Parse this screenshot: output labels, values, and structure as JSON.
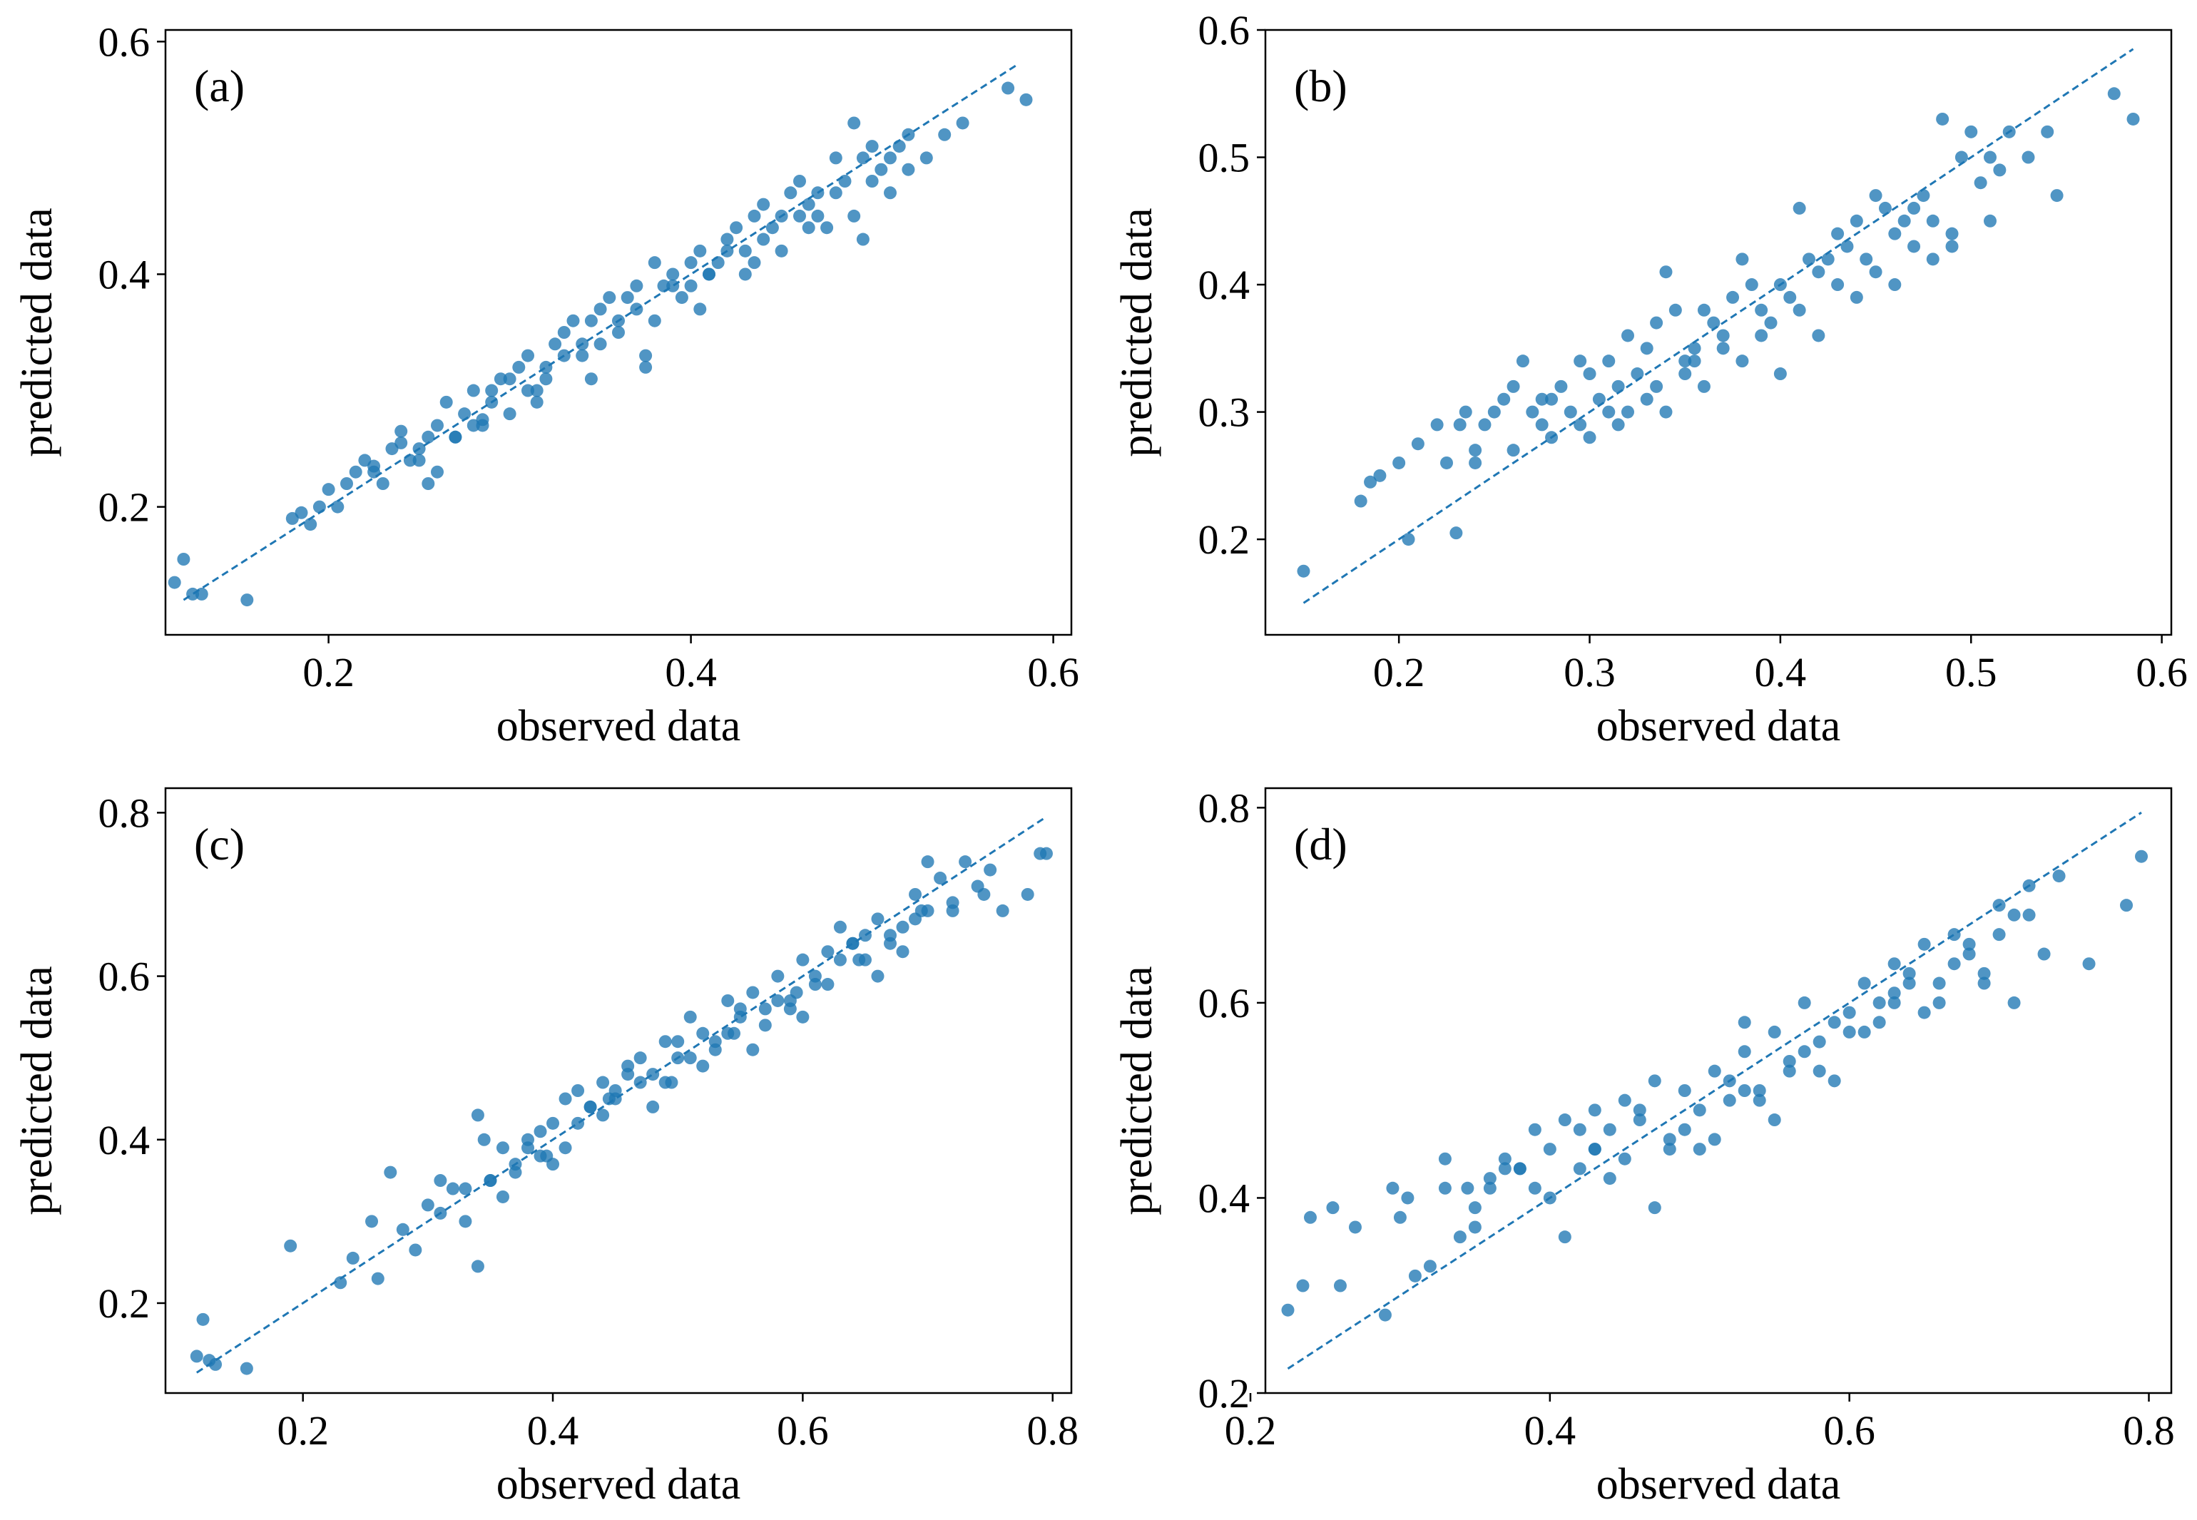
{
  "colors": {
    "points": "#1f77b4",
    "reference_line": "#1f77b4",
    "axes": "#000000"
  },
  "chart_data": [
    {
      "panel": "(a)",
      "type": "scatter",
      "xlabel": "observed data",
      "ylabel": "predicted data",
      "xlim": [
        0.11,
        0.61
      ],
      "ylim": [
        0.09,
        0.61
      ],
      "xticks": [
        0.2,
        0.4,
        0.6
      ],
      "yticks": [
        0.2,
        0.4,
        0.6
      ],
      "reference_line": [
        [
          0.12,
          0.12
        ],
        [
          0.58,
          0.58
        ]
      ],
      "x": [
        0.115,
        0.12,
        0.125,
        0.13,
        0.155,
        0.18,
        0.185,
        0.19,
        0.195,
        0.2,
        0.205,
        0.21,
        0.215,
        0.22,
        0.225,
        0.23,
        0.235,
        0.24,
        0.245,
        0.25,
        0.255,
        0.26,
        0.265,
        0.27,
        0.275,
        0.28,
        0.285,
        0.29,
        0.295,
        0.3,
        0.305,
        0.31,
        0.315,
        0.32,
        0.325,
        0.33,
        0.335,
        0.34,
        0.345,
        0.35,
        0.355,
        0.36,
        0.365,
        0.37,
        0.375,
        0.38,
        0.385,
        0.39,
        0.395,
        0.4,
        0.405,
        0.41,
        0.415,
        0.42,
        0.425,
        0.43,
        0.435,
        0.44,
        0.445,
        0.45,
        0.455,
        0.46,
        0.465,
        0.47,
        0.475,
        0.48,
        0.485,
        0.49,
        0.495,
        0.5,
        0.505,
        0.51,
        0.515,
        0.52,
        0.53,
        0.54,
        0.55,
        0.575,
        0.585,
        0.24,
        0.25,
        0.26,
        0.27,
        0.28,
        0.29,
        0.3,
        0.31,
        0.32,
        0.33,
        0.34,
        0.35,
        0.36,
        0.37,
        0.38,
        0.39,
        0.4,
        0.41,
        0.42,
        0.43,
        0.44,
        0.45,
        0.46,
        0.47,
        0.48,
        0.49,
        0.5,
        0.51,
        0.52,
        0.345,
        0.375,
        0.405,
        0.435,
        0.465,
        0.495,
        0.285,
        0.315,
        0.255,
        0.225
      ],
      "y": [
        0.135,
        0.155,
        0.125,
        0.125,
        0.12,
        0.19,
        0.195,
        0.185,
        0.2,
        0.215,
        0.2,
        0.22,
        0.23,
        0.24,
        0.235,
        0.22,
        0.25,
        0.265,
        0.24,
        0.25,
        0.26,
        0.27,
        0.29,
        0.26,
        0.28,
        0.3,
        0.275,
        0.3,
        0.31,
        0.31,
        0.32,
        0.33,
        0.29,
        0.32,
        0.34,
        0.35,
        0.36,
        0.33,
        0.36,
        0.37,
        0.38,
        0.35,
        0.38,
        0.39,
        0.32,
        0.41,
        0.39,
        0.4,
        0.38,
        0.41,
        0.42,
        0.4,
        0.41,
        0.43,
        0.44,
        0.42,
        0.45,
        0.46,
        0.44,
        0.45,
        0.47,
        0.48,
        0.46,
        0.47,
        0.44,
        0.5,
        0.48,
        0.53,
        0.5,
        0.51,
        0.49,
        0.5,
        0.51,
        0.52,
        0.5,
        0.52,
        0.53,
        0.56,
        0.55,
        0.255,
        0.24,
        0.23,
        0.26,
        0.27,
        0.29,
        0.28,
        0.3,
        0.31,
        0.33,
        0.34,
        0.34,
        0.36,
        0.37,
        0.36,
        0.39,
        0.39,
        0.4,
        0.42,
        0.4,
        0.43,
        0.42,
        0.45,
        0.45,
        0.47,
        0.45,
        0.48,
        0.47,
        0.49,
        0.31,
        0.33,
        0.37,
        0.41,
        0.44,
        0.43,
        0.27,
        0.3,
        0.22,
        0.23
      ]
    },
    {
      "panel": "(b)",
      "type": "scatter",
      "xlabel": "observed data",
      "ylabel": "predicted data",
      "xlim": [
        0.13,
        0.605
      ],
      "ylim": [
        0.125,
        0.6
      ],
      "xticks": [
        0.2,
        0.3,
        0.4,
        0.5,
        0.6
      ],
      "yticks": [
        0.2,
        0.3,
        0.4,
        0.5,
        0.6
      ],
      "reference_line": [
        [
          0.15,
          0.15
        ],
        [
          0.585,
          0.585
        ]
      ],
      "x": [
        0.15,
        0.18,
        0.185,
        0.19,
        0.2,
        0.205,
        0.21,
        0.22,
        0.225,
        0.23,
        0.232,
        0.235,
        0.24,
        0.245,
        0.25,
        0.255,
        0.26,
        0.265,
        0.27,
        0.275,
        0.28,
        0.285,
        0.29,
        0.295,
        0.3,
        0.305,
        0.31,
        0.315,
        0.32,
        0.325,
        0.33,
        0.335,
        0.34,
        0.345,
        0.35,
        0.355,
        0.36,
        0.365,
        0.37,
        0.375,
        0.38,
        0.385,
        0.39,
        0.395,
        0.4,
        0.405,
        0.41,
        0.415,
        0.42,
        0.425,
        0.43,
        0.435,
        0.44,
        0.445,
        0.45,
        0.455,
        0.46,
        0.465,
        0.47,
        0.475,
        0.48,
        0.485,
        0.49,
        0.495,
        0.5,
        0.505,
        0.51,
        0.515,
        0.52,
        0.53,
        0.54,
        0.545,
        0.575,
        0.585,
        0.24,
        0.26,
        0.28,
        0.3,
        0.32,
        0.34,
        0.36,
        0.38,
        0.4,
        0.42,
        0.44,
        0.46,
        0.48,
        0.31,
        0.33,
        0.35,
        0.37,
        0.39,
        0.41,
        0.43,
        0.45,
        0.47,
        0.49,
        0.51,
        0.275,
        0.295,
        0.315,
        0.335,
        0.355
      ],
      "y": [
        0.175,
        0.23,
        0.245,
        0.25,
        0.26,
        0.2,
        0.275,
        0.29,
        0.26,
        0.205,
        0.29,
        0.3,
        0.27,
        0.29,
        0.3,
        0.31,
        0.32,
        0.34,
        0.3,
        0.29,
        0.31,
        0.32,
        0.3,
        0.29,
        0.33,
        0.31,
        0.34,
        0.32,
        0.36,
        0.33,
        0.35,
        0.37,
        0.41,
        0.38,
        0.34,
        0.35,
        0.38,
        0.37,
        0.36,
        0.39,
        0.42,
        0.4,
        0.38,
        0.37,
        0.4,
        0.39,
        0.46,
        0.42,
        0.41,
        0.42,
        0.44,
        0.43,
        0.45,
        0.42,
        0.47,
        0.46,
        0.44,
        0.45,
        0.46,
        0.47,
        0.45,
        0.53,
        0.44,
        0.5,
        0.52,
        0.48,
        0.5,
        0.49,
        0.52,
        0.5,
        0.52,
        0.47,
        0.55,
        0.53,
        0.26,
        0.27,
        0.28,
        0.28,
        0.3,
        0.3,
        0.32,
        0.34,
        0.33,
        0.36,
        0.39,
        0.4,
        0.42,
        0.3,
        0.31,
        0.33,
        0.35,
        0.36,
        0.38,
        0.4,
        0.41,
        0.43,
        0.43,
        0.45,
        0.31,
        0.34,
        0.29,
        0.32,
        0.34
      ]
    },
    {
      "panel": "(c)",
      "type": "scatter",
      "xlabel": "observed data",
      "ylabel": "predicted data",
      "xlim": [
        0.09,
        0.815
      ],
      "ylim": [
        0.09,
        0.83
      ],
      "xticks": [
        0.2,
        0.4,
        0.6,
        0.8
      ],
      "yticks": [
        0.2,
        0.4,
        0.6,
        0.8
      ],
      "reference_line": [
        [
          0.115,
          0.115
        ],
        [
          0.795,
          0.795
        ]
      ],
      "x": [
        0.115,
        0.12,
        0.125,
        0.13,
        0.155,
        0.19,
        0.23,
        0.24,
        0.255,
        0.26,
        0.27,
        0.28,
        0.29,
        0.3,
        0.31,
        0.32,
        0.33,
        0.34,
        0.35,
        0.36,
        0.37,
        0.38,
        0.39,
        0.4,
        0.41,
        0.42,
        0.43,
        0.44,
        0.45,
        0.46,
        0.47,
        0.48,
        0.49,
        0.5,
        0.51,
        0.52,
        0.53,
        0.54,
        0.55,
        0.56,
        0.57,
        0.58,
        0.59,
        0.6,
        0.61,
        0.62,
        0.63,
        0.64,
        0.65,
        0.66,
        0.67,
        0.68,
        0.69,
        0.7,
        0.71,
        0.72,
        0.73,
        0.74,
        0.75,
        0.76,
        0.78,
        0.79,
        0.795,
        0.34,
        0.36,
        0.38,
        0.4,
        0.42,
        0.44,
        0.46,
        0.48,
        0.5,
        0.52,
        0.54,
        0.56,
        0.58,
        0.6,
        0.62,
        0.64,
        0.66,
        0.68,
        0.7,
        0.72,
        0.345,
        0.395,
        0.445,
        0.495,
        0.545,
        0.595,
        0.645,
        0.695,
        0.745,
        0.31,
        0.33,
        0.35,
        0.37,
        0.39,
        0.41,
        0.43,
        0.45,
        0.47,
        0.49,
        0.51,
        0.53,
        0.55,
        0.57,
        0.59,
        0.61,
        0.63,
        0.65,
        0.67,
        0.69
      ],
      "y": [
        0.135,
        0.18,
        0.13,
        0.125,
        0.12,
        0.27,
        0.225,
        0.255,
        0.3,
        0.23,
        0.36,
        0.29,
        0.265,
        0.32,
        0.35,
        0.34,
        0.3,
        0.245,
        0.35,
        0.39,
        0.37,
        0.4,
        0.38,
        0.42,
        0.45,
        0.42,
        0.44,
        0.47,
        0.46,
        0.49,
        0.5,
        0.48,
        0.52,
        0.5,
        0.55,
        0.53,
        0.51,
        0.57,
        0.56,
        0.58,
        0.56,
        0.6,
        0.57,
        0.62,
        0.6,
        0.63,
        0.66,
        0.64,
        0.62,
        0.67,
        0.65,
        0.63,
        0.7,
        0.68,
        0.72,
        0.69,
        0.74,
        0.71,
        0.73,
        0.68,
        0.7,
        0.75,
        0.75,
        0.43,
        0.33,
        0.39,
        0.37,
        0.46,
        0.43,
        0.48,
        0.44,
        0.52,
        0.49,
        0.53,
        0.51,
        0.57,
        0.55,
        0.59,
        0.64,
        0.6,
        0.66,
        0.74,
        0.68,
        0.4,
        0.38,
        0.45,
        0.47,
        0.53,
        0.58,
        0.62,
        0.68,
        0.7,
        0.31,
        0.34,
        0.35,
        0.36,
        0.41,
        0.39,
        0.44,
        0.45,
        0.47,
        0.47,
        0.5,
        0.52,
        0.55,
        0.54,
        0.56,
        0.59,
        0.62,
        0.65,
        0.64,
        0.67
      ]
    },
    {
      "panel": "(d)",
      "type": "scatter",
      "xlabel": "observed data",
      "ylabel": "predicted data",
      "xlim": [
        0.21,
        0.815
      ],
      "ylim": [
        0.2,
        0.82
      ],
      "xticks": [
        0.2,
        0.4,
        0.6,
        0.8
      ],
      "yticks": [
        0.2,
        0.4,
        0.6,
        0.8
      ],
      "reference_line": [
        [
          0.225,
          0.225
        ],
        [
          0.795,
          0.795
        ]
      ],
      "x": [
        0.225,
        0.235,
        0.24,
        0.255,
        0.26,
        0.27,
        0.29,
        0.295,
        0.3,
        0.305,
        0.31,
        0.32,
        0.33,
        0.34,
        0.345,
        0.35,
        0.36,
        0.37,
        0.38,
        0.39,
        0.4,
        0.41,
        0.42,
        0.43,
        0.44,
        0.45,
        0.46,
        0.47,
        0.48,
        0.49,
        0.5,
        0.51,
        0.52,
        0.53,
        0.54,
        0.55,
        0.56,
        0.57,
        0.58,
        0.59,
        0.6,
        0.61,
        0.62,
        0.63,
        0.64,
        0.65,
        0.66,
        0.67,
        0.68,
        0.69,
        0.7,
        0.71,
        0.72,
        0.73,
        0.74,
        0.76,
        0.785,
        0.795,
        0.35,
        0.37,
        0.39,
        0.41,
        0.43,
        0.45,
        0.47,
        0.49,
        0.51,
        0.53,
        0.55,
        0.57,
        0.59,
        0.61,
        0.63,
        0.65,
        0.67,
        0.69,
        0.71,
        0.4,
        0.44,
        0.48,
        0.52,
        0.56,
        0.6,
        0.64,
        0.68,
        0.72,
        0.36,
        0.38,
        0.42,
        0.46,
        0.5,
        0.54,
        0.58,
        0.62,
        0.66,
        0.7,
        0.33,
        0.43,
        0.53,
        0.63
      ],
      "y": [
        0.285,
        0.31,
        0.38,
        0.39,
        0.31,
        0.37,
        0.28,
        0.41,
        0.38,
        0.4,
        0.32,
        0.33,
        0.44,
        0.36,
        0.41,
        0.37,
        0.42,
        0.44,
        0.43,
        0.47,
        0.45,
        0.48,
        0.43,
        0.49,
        0.47,
        0.5,
        0.48,
        0.52,
        0.46,
        0.51,
        0.49,
        0.53,
        0.52,
        0.55,
        0.51,
        0.57,
        0.54,
        0.6,
        0.56,
        0.58,
        0.59,
        0.62,
        0.6,
        0.61,
        0.63,
        0.66,
        0.62,
        0.67,
        0.65,
        0.63,
        0.7,
        0.69,
        0.72,
        0.65,
        0.73,
        0.64,
        0.7,
        0.75,
        0.39,
        0.43,
        0.41,
        0.36,
        0.45,
        0.44,
        0.39,
        0.47,
        0.46,
        0.51,
        0.48,
        0.55,
        0.52,
        0.57,
        0.6,
        0.59,
        0.64,
        0.62,
        0.6,
        0.4,
        0.42,
        0.45,
        0.5,
        0.53,
        0.57,
        0.62,
        0.66,
        0.69,
        0.41,
        0.43,
        0.47,
        0.49,
        0.45,
        0.5,
        0.53,
        0.58,
        0.6,
        0.67,
        0.41,
        0.45,
        0.58,
        0.64
      ]
    }
  ]
}
